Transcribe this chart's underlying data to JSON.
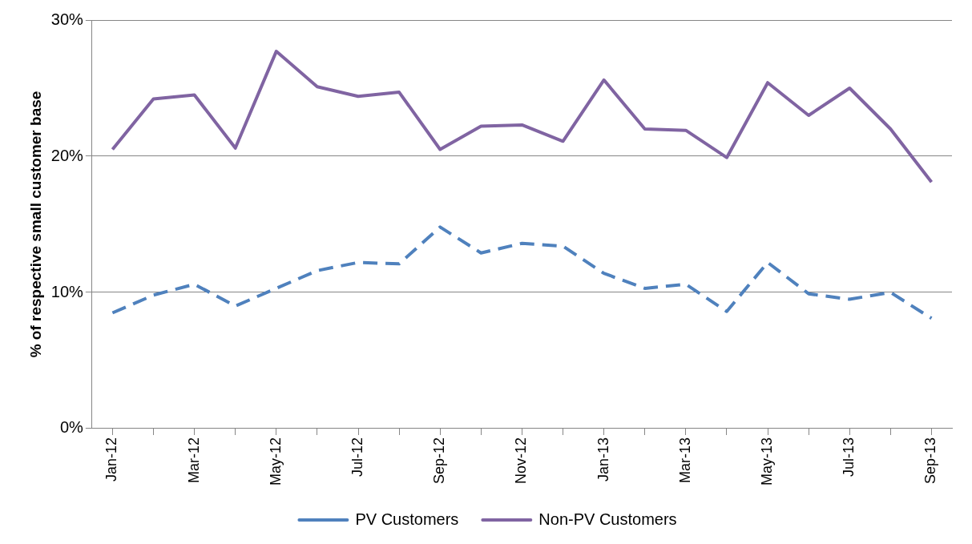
{
  "chart_data": {
    "type": "line",
    "ylabel": "% of respective small customer base",
    "categories": [
      "Jan-12",
      null,
      "Mar-12",
      null,
      "May-12",
      null,
      "Jul-12",
      null,
      "Sep-12",
      null,
      "Nov-12",
      null,
      "Jan-13",
      null,
      "Mar-13",
      null,
      "May-13",
      null,
      "Jul-13",
      null,
      "Sep-13"
    ],
    "series": [
      {
        "name": "PV Customers",
        "color": "#4f81bd",
        "line_style": "dashed",
        "values": [
          8.5,
          9.8,
          10.6,
          9.0,
          10.3,
          11.6,
          12.2,
          12.1,
          14.8,
          12.9,
          13.6,
          13.4,
          11.4,
          10.3,
          10.6,
          8.6,
          12.2,
          9.9,
          9.5,
          10.0,
          8.1
        ]
      },
      {
        "name": "Non-PV Customers",
        "color": "#8064a2",
        "line_style": "solid",
        "values": [
          20.5,
          24.2,
          24.5,
          20.6,
          27.7,
          25.1,
          24.4,
          24.7,
          20.5,
          22.2,
          22.3,
          21.1,
          25.6,
          22.0,
          21.9,
          19.9,
          25.4,
          23.0,
          25.0,
          22.0,
          18.1
        ]
      }
    ],
    "ylim": [
      0,
      30
    ],
    "yticks": [
      {
        "value": 0,
        "label": "0%"
      },
      {
        "value": 10,
        "label": "10%"
      },
      {
        "value": 20,
        "label": "20%"
      },
      {
        "value": 30,
        "label": "30%"
      }
    ],
    "grid": "y",
    "legend": "bottom",
    "marker": "none"
  }
}
